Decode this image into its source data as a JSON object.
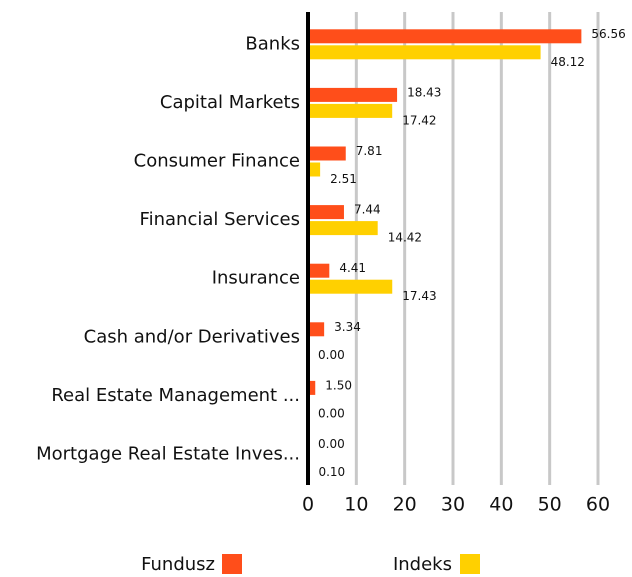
{
  "chart_data": {
    "type": "hbar",
    "categories": [
      "Banks",
      "Capital Markets",
      "Consumer Finance",
      "Financial Services",
      "Insurance",
      "Cash and/or Derivatives",
      "Real Estate Management ...",
      "Mortgage Real Estate Inves..."
    ],
    "series": [
      {
        "name": "Fundusz",
        "color": "#ff4e1a",
        "values": [
          56.56,
          18.43,
          7.81,
          7.44,
          4.41,
          3.34,
          1.5,
          0
        ],
        "value_labels": [
          "56.56",
          "18.43",
          "7.81",
          "7.44",
          "4.41",
          "3.34",
          "1.50",
          "0.00"
        ]
      },
      {
        "name": "Indeks",
        "color": "#ffd000",
        "values": [
          48.12,
          17.42,
          2.51,
          14.42,
          17.43,
          0,
          0,
          0.1
        ],
        "value_labels": [
          "48.12",
          "17.42",
          "2.51",
          "14.42",
          "17.43",
          "0.00",
          "0.00",
          "0.10"
        ]
      }
    ],
    "xlim": [
      0,
      60
    ],
    "xticks": [
      0,
      10,
      20,
      30,
      40,
      50,
      60
    ],
    "grid": true
  }
}
